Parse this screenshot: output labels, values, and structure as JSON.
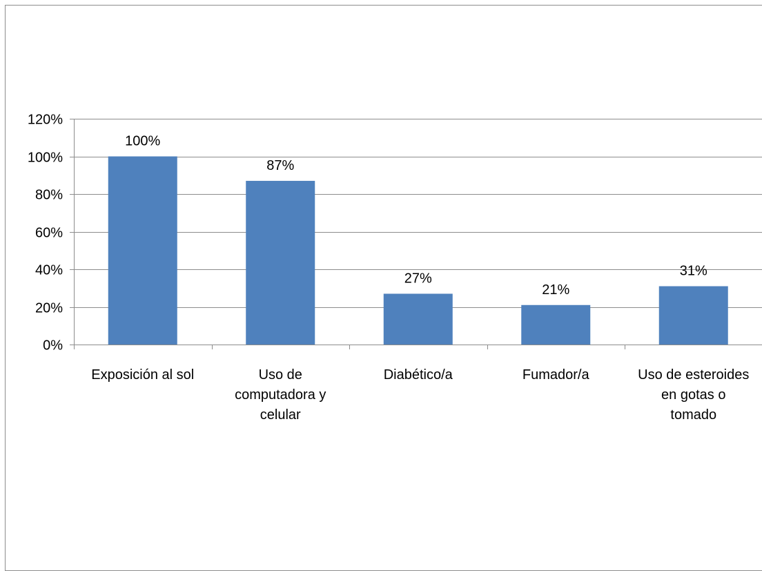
{
  "chart_data": {
    "type": "bar",
    "title": "",
    "xlabel": "",
    "ylabel": "",
    "categories": [
      [
        "Exposición al sol"
      ],
      [
        "Uso de",
        "computadora y",
        "celular"
      ],
      [
        "Diabético/a"
      ],
      [
        "Fumador/a"
      ],
      [
        "Uso de esteroides",
        "en gotas o",
        "tomado"
      ]
    ],
    "values": [
      100,
      87,
      27,
      21,
      31
    ],
    "data_labels": [
      "100%",
      "87%",
      "27%",
      "21%",
      "31%"
    ],
    "yticks": [
      "0%",
      "20%",
      "40%",
      "60%",
      "80%",
      "100%",
      "120%"
    ],
    "ylim": [
      0,
      120
    ],
    "grid": true,
    "legend": "none",
    "colors": {
      "bar": "#4F81BD",
      "grid": "#8C8C8C",
      "axis": "#8C8C8C"
    }
  }
}
